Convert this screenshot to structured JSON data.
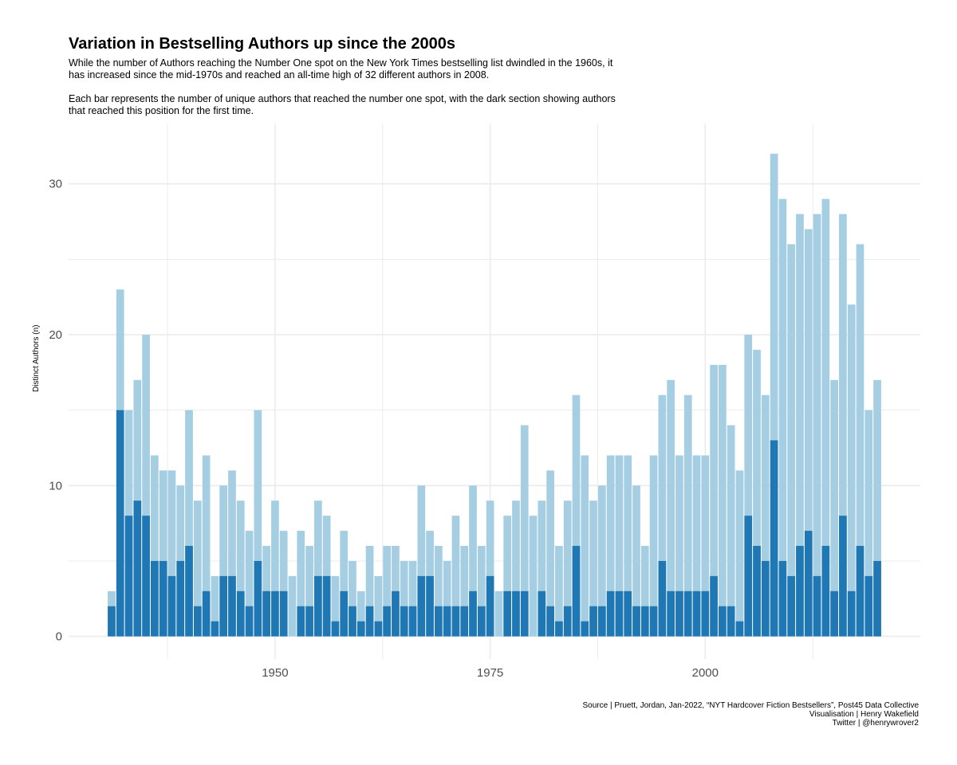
{
  "chart_data": {
    "type": "bar",
    "stacked": true,
    "title": "Variation in Bestselling Authors up since the 2000s",
    "subtitle": [
      "While the number of Authors reaching the Number One spot on the New York Times bestselling list dwindled in the 1960s, it has increased since the mid-1970s and reached an all-time high of 32 different authors in 2008.",
      "Each bar represents the number of unique authors that reached the number one spot, with the dark section showing authors that reached this position for the first time."
    ],
    "xlabel": "",
    "ylabel": "Distinct Authors (n)",
    "x_ticks": [
      "1950",
      "1975",
      "2000"
    ],
    "y_ticks": [
      "0",
      "10",
      "20",
      "30"
    ],
    "xlim": [
      1926,
      2025
    ],
    "ylim": [
      -1.5,
      34
    ],
    "grid": true,
    "legend": "none",
    "caption": [
      "Source | Pruett, Jordan, Jan-2022, “NYT Hardcover Fiction Bestsellers”, Post45 Data Collective",
      "Visualisation | Henry Wakefield",
      "Twitter | @henrywrover2"
    ],
    "colors": {
      "total": "#a6cee3",
      "first_time": "#1f78b4",
      "grid": "#ebebeb",
      "axis_text": "#4d4d4d"
    },
    "x": [
      1931,
      1932,
      1933,
      1934,
      1935,
      1936,
      1937,
      1938,
      1939,
      1940,
      1941,
      1942,
      1943,
      1944,
      1945,
      1946,
      1947,
      1948,
      1949,
      1950,
      1951,
      1952,
      1953,
      1954,
      1955,
      1956,
      1957,
      1958,
      1959,
      1960,
      1961,
      1962,
      1963,
      1964,
      1965,
      1966,
      1967,
      1968,
      1969,
      1970,
      1971,
      1972,
      1973,
      1974,
      1975,
      1976,
      1977,
      1978,
      1979,
      1980,
      1981,
      1982,
      1983,
      1984,
      1985,
      1986,
      1987,
      1988,
      1989,
      1990,
      1991,
      1992,
      1993,
      1994,
      1995,
      1996,
      1997,
      1998,
      1999,
      2000,
      2001,
      2002,
      2003,
      2004,
      2005,
      2006,
      2007,
      2008,
      2009,
      2010,
      2011,
      2012,
      2013,
      2014,
      2015,
      2016,
      2017,
      2018,
      2019,
      2020
    ],
    "series": [
      {
        "name": "total",
        "values": [
          3,
          23,
          15,
          17,
          20,
          12,
          11,
          11,
          10,
          15,
          9,
          12,
          4,
          10,
          11,
          9,
          7,
          15,
          6,
          9,
          7,
          4,
          7,
          6,
          9,
          8,
          4,
          7,
          5,
          3,
          6,
          4,
          6,
          6,
          5,
          5,
          10,
          7,
          6,
          5,
          8,
          6,
          10,
          6,
          9,
          3,
          8,
          9,
          14,
          8,
          9,
          11,
          6,
          9,
          16,
          12,
          9,
          10,
          12,
          12,
          12,
          10,
          6,
          12,
          16,
          17,
          12,
          16,
          12,
          12,
          18,
          18,
          14,
          11,
          20,
          19,
          16,
          32,
          29,
          26,
          28,
          27,
          28,
          29,
          17,
          28,
          22,
          26,
          15,
          17
        ]
      },
      {
        "name": "first_time",
        "values": [
          2,
          15,
          8,
          9,
          8,
          5,
          5,
          4,
          5,
          6,
          2,
          3,
          1,
          4,
          4,
          3,
          2,
          5,
          3,
          3,
          3,
          0,
          2,
          2,
          4,
          4,
          1,
          3,
          2,
          1,
          2,
          1,
          2,
          3,
          2,
          2,
          4,
          4,
          2,
          2,
          2,
          2,
          3,
          2,
          4,
          0,
          3,
          3,
          3,
          0,
          3,
          2,
          1,
          2,
          6,
          1,
          2,
          2,
          3,
          3,
          3,
          2,
          2,
          2,
          5,
          3,
          3,
          3,
          3,
          3,
          4,
          2,
          2,
          1,
          8,
          6,
          5,
          13,
          5,
          4,
          6,
          7,
          4,
          6,
          3,
          8,
          3,
          6,
          4,
          5
        ]
      }
    ]
  }
}
